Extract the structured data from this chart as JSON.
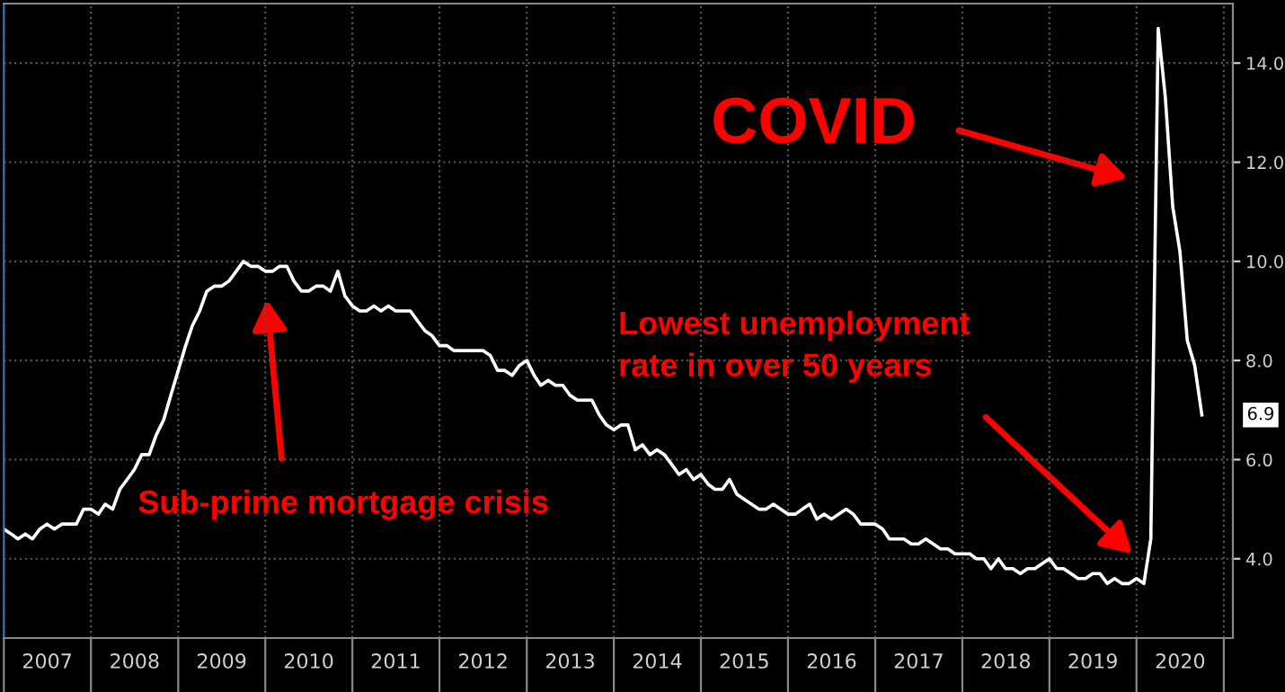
{
  "chart_data": {
    "type": "line",
    "x": [
      "2007-01",
      "2007-02",
      "2007-03",
      "2007-04",
      "2007-05",
      "2007-06",
      "2007-07",
      "2007-08",
      "2007-09",
      "2007-10",
      "2007-11",
      "2007-12",
      "2008-01",
      "2008-02",
      "2008-03",
      "2008-04",
      "2008-05",
      "2008-06",
      "2008-07",
      "2008-08",
      "2008-09",
      "2008-10",
      "2008-11",
      "2008-12",
      "2009-01",
      "2009-02",
      "2009-03",
      "2009-04",
      "2009-05",
      "2009-06",
      "2009-07",
      "2009-08",
      "2009-09",
      "2009-10",
      "2009-11",
      "2009-12",
      "2010-01",
      "2010-02",
      "2010-03",
      "2010-04",
      "2010-05",
      "2010-06",
      "2010-07",
      "2010-08",
      "2010-09",
      "2010-10",
      "2010-11",
      "2010-12",
      "2011-01",
      "2011-02",
      "2011-03",
      "2011-04",
      "2011-05",
      "2011-06",
      "2011-07",
      "2011-08",
      "2011-09",
      "2011-10",
      "2011-11",
      "2011-12",
      "2012-01",
      "2012-02",
      "2012-03",
      "2012-04",
      "2012-05",
      "2012-06",
      "2012-07",
      "2012-08",
      "2012-09",
      "2012-10",
      "2012-11",
      "2012-12",
      "2013-01",
      "2013-02",
      "2013-03",
      "2013-04",
      "2013-05",
      "2013-06",
      "2013-07",
      "2013-08",
      "2013-09",
      "2013-10",
      "2013-11",
      "2013-12",
      "2014-01",
      "2014-02",
      "2014-03",
      "2014-04",
      "2014-05",
      "2014-06",
      "2014-07",
      "2014-08",
      "2014-09",
      "2014-10",
      "2014-11",
      "2014-12",
      "2015-01",
      "2015-02",
      "2015-03",
      "2015-04",
      "2015-05",
      "2015-06",
      "2015-07",
      "2015-08",
      "2015-09",
      "2015-10",
      "2015-11",
      "2015-12",
      "2016-01",
      "2016-02",
      "2016-03",
      "2016-04",
      "2016-05",
      "2016-06",
      "2016-07",
      "2016-08",
      "2016-09",
      "2016-10",
      "2016-11",
      "2016-12",
      "2017-01",
      "2017-02",
      "2017-03",
      "2017-04",
      "2017-05",
      "2017-06",
      "2017-07",
      "2017-08",
      "2017-09",
      "2017-10",
      "2017-11",
      "2017-12",
      "2018-01",
      "2018-02",
      "2018-03",
      "2018-04",
      "2018-05",
      "2018-06",
      "2018-07",
      "2018-08",
      "2018-09",
      "2018-10",
      "2018-11",
      "2018-12",
      "2019-01",
      "2019-02",
      "2019-03",
      "2019-04",
      "2019-05",
      "2019-06",
      "2019-07",
      "2019-08",
      "2019-09",
      "2019-10",
      "2019-11",
      "2019-12",
      "2020-01",
      "2020-02",
      "2020-03",
      "2020-04",
      "2020-05",
      "2020-06",
      "2020-07",
      "2020-08",
      "2020-09",
      "2020-10"
    ],
    "series": [
      {
        "color": "#ffffff",
        "values": [
          4.6,
          4.5,
          4.4,
          4.5,
          4.4,
          4.6,
          4.7,
          4.6,
          4.7,
          4.7,
          4.7,
          5.0,
          5.0,
          4.9,
          5.1,
          5.0,
          5.4,
          5.6,
          5.8,
          6.1,
          6.1,
          6.5,
          6.8,
          7.3,
          7.8,
          8.3,
          8.7,
          9.0,
          9.4,
          9.5,
          9.5,
          9.6,
          9.8,
          10.0,
          9.9,
          9.9,
          9.8,
          9.8,
          9.9,
          9.9,
          9.6,
          9.4,
          9.4,
          9.5,
          9.5,
          9.4,
          9.8,
          9.3,
          9.1,
          9.0,
          9.0,
          9.1,
          9.0,
          9.1,
          9.0,
          9.0,
          9.0,
          8.8,
          8.6,
          8.5,
          8.3,
          8.3,
          8.2,
          8.2,
          8.2,
          8.2,
          8.2,
          8.1,
          7.8,
          7.8,
          7.7,
          7.9,
          8.0,
          7.7,
          7.5,
          7.6,
          7.5,
          7.5,
          7.3,
          7.2,
          7.2,
          7.2,
          6.9,
          6.7,
          6.6,
          6.7,
          6.7,
          6.2,
          6.3,
          6.1,
          6.2,
          6.1,
          5.9,
          5.7,
          5.8,
          5.6,
          5.7,
          5.5,
          5.4,
          5.4,
          5.6,
          5.3,
          5.2,
          5.1,
          5.0,
          5.0,
          5.1,
          5.0,
          4.9,
          4.9,
          5.0,
          5.1,
          4.8,
          4.9,
          4.8,
          4.9,
          5.0,
          4.9,
          4.7,
          4.7,
          4.7,
          4.6,
          4.4,
          4.4,
          4.4,
          4.3,
          4.3,
          4.4,
          4.3,
          4.2,
          4.2,
          4.1,
          4.1,
          4.1,
          4.0,
          4.0,
          3.8,
          4.0,
          3.8,
          3.8,
          3.7,
          3.8,
          3.8,
          3.9,
          4.0,
          3.8,
          3.8,
          3.7,
          3.6,
          3.6,
          3.7,
          3.7,
          3.5,
          3.6,
          3.5,
          3.5,
          3.6,
          3.5,
          4.4,
          14.7,
          13.3,
          11.1,
          10.2,
          8.4,
          7.9,
          6.9
        ]
      }
    ],
    "xlim": [
      "2007-01-01",
      "2021-02-08"
    ],
    "xticks": [
      {
        "value": "2007-01-01",
        "label": null
      },
      {
        "value": "2008-01-01",
        "label": null
      },
      {
        "value": "2009-01-01",
        "label": null
      },
      {
        "value": "2010-01-01",
        "label": null
      },
      {
        "value": "2011-01-01",
        "label": null
      },
      {
        "value": "2012-01-01",
        "label": null
      },
      {
        "value": "2013-01-01",
        "label": null
      },
      {
        "value": "2014-01-01",
        "label": null
      },
      {
        "value": "2015-01-01",
        "label": null
      },
      {
        "value": "2016-01-01",
        "label": null
      },
      {
        "value": "2017-01-01",
        "label": null
      },
      {
        "value": "2018-01-01",
        "label": null
      },
      {
        "value": "2019-01-01",
        "label": null
      },
      {
        "value": "2020-01-01",
        "label": null
      },
      {
        "value": "2021-01-01",
        "label": null
      },
      {
        "value": "2007-07-02",
        "label": "2007"
      },
      {
        "value": "2008-07-02",
        "label": "2008"
      },
      {
        "value": "2009-07-02",
        "label": "2009"
      },
      {
        "value": "2010-07-02",
        "label": "2010"
      },
      {
        "value": "2011-07-02",
        "label": "2011"
      },
      {
        "value": "2012-07-02",
        "label": "2012"
      },
      {
        "value": "2013-07-02",
        "label": "2013"
      },
      {
        "value": "2014-07-02",
        "label": "2014"
      },
      {
        "value": "2015-07-02",
        "label": "2015"
      },
      {
        "value": "2016-07-02",
        "label": "2016"
      },
      {
        "value": "2017-07-02",
        "label": "2017"
      },
      {
        "value": "2018-07-02",
        "label": "2018"
      },
      {
        "value": "2019-07-02",
        "label": "2019"
      },
      {
        "value": "2020-07-02",
        "label": "2020"
      }
    ],
    "ylim": [
      2.4,
      15.2
    ],
    "yticks": [
      {
        "value": 4,
        "label": "4.0"
      },
      {
        "value": 6,
        "label": "6.0"
      },
      {
        "value": 8,
        "label": "8.0"
      },
      {
        "value": 10,
        "label": "10.0"
      },
      {
        "value": 12,
        "label": "12.0"
      },
      {
        "value": 14,
        "label": "14.0"
      }
    ],
    "grid": true,
    "annotations": [
      "COVID",
      "Lowest unemployment\nrate in over 50 years",
      "Sub-prime mortgage crisis",
      {
        "text": "6.9",
        "x": "2020-10",
        "y": 6.9
      }
    ]
  }
}
